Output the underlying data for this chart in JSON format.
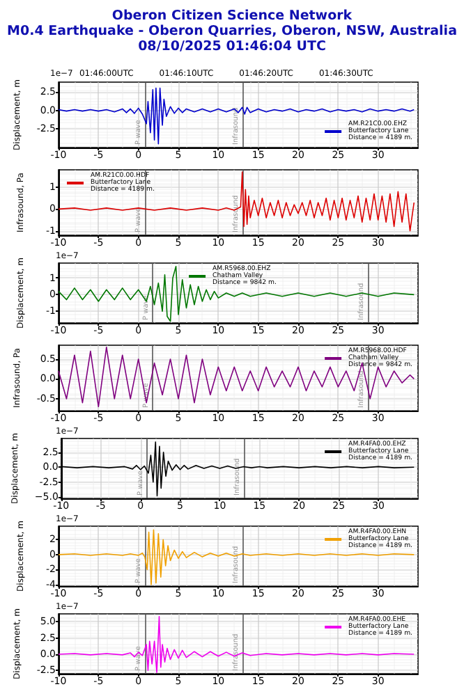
{
  "chart_data": [
    {
      "type": "line",
      "title": "Oberon Citizen Science Network",
      "subtitle": "M0.4 Earthquake - Oberon Quarries, Oberon, NSW, Australia\n08/10/2025 01:46:04 UTC",
      "ylabel": "Displacement, m",
      "annotations": [
        "1e−7",
        {
          "text": "01:46:00UTC",
          "x": -4
        },
        {
          "text": "01:46:10UTC",
          "x": 6
        },
        {
          "text": "01:46:20UTC",
          "x": 16
        },
        {
          "text": "01:46:30UTC",
          "x": 26
        }
      ],
      "xlim": [
        -10,
        35
      ],
      "xticks": [
        -10,
        -5,
        0,
        5,
        10,
        15,
        20,
        25,
        30
      ],
      "ylim": [
        -5,
        3.8
      ],
      "yticks": [
        -2.5,
        {
          "value": 0,
          "label": "0.0"
        },
        2.5
      ],
      "grid": true,
      "legend": "bottom right",
      "ref_lines": [
        {
          "axis": "x",
          "value": 0.8,
          "label": "P wave",
          "color": "#555555"
        },
        {
          "axis": "x",
          "value": 13,
          "label": "Infrasound",
          "color": "#555555"
        }
      ],
      "series": [
        {
          "name": "AM.R21C0.00.EHZ\nButterfactory Lane\nDistance = 4189 m.",
          "color": "#0000cc",
          "x": [
            -10,
            -9,
            -8,
            -7,
            -6,
            -5,
            -4,
            -3,
            -2,
            -1.5,
            -1,
            -0.5,
            0,
            0.5,
            1,
            1.2,
            1.5,
            1.8,
            2,
            2.2,
            2.5,
            2.7,
            3,
            3.2,
            3.5,
            4,
            4.5,
            5,
            5.5,
            6,
            7,
            8,
            9,
            10,
            11,
            12,
            12.5,
            13,
            13.3,
            13.6,
            14,
            15,
            16,
            17,
            18,
            19,
            20,
            21,
            22,
            23,
            24,
            25,
            26,
            27,
            28,
            29,
            30,
            31,
            32,
            33,
            34,
            34.5
          ],
          "values": [
            0.1,
            -0.1,
            0.1,
            -0.1,
            0.1,
            -0.1,
            0.1,
            -0.2,
            0.2,
            -0.3,
            0.2,
            -0.4,
            0.3,
            -0.5,
            -1.8,
            1.2,
            -3.0,
            2.8,
            -4.0,
            3.0,
            -4.5,
            3.0,
            -2.0,
            1.5,
            -0.8,
            0.5,
            -0.4,
            0.3,
            -0.3,
            0.2,
            -0.2,
            0.2,
            -0.2,
            0.2,
            -0.2,
            0.2,
            -0.3,
            0.4,
            -0.5,
            0.4,
            -0.3,
            0.2,
            -0.2,
            0.1,
            -0.1,
            0.2,
            -0.2,
            0.1,
            -0.1,
            0.2,
            -0.2,
            0.1,
            -0.1,
            0.1,
            -0.2,
            0.2,
            -0.1,
            0.1,
            -0.1,
            0.2,
            -0.1,
            0.1
          ]
        }
      ]
    },
    {
      "type": "line",
      "ylabel": "Infrasound, Pa",
      "xlim": [
        -10,
        35
      ],
      "xticks": [
        -10,
        -5,
        0,
        5,
        10,
        15,
        20,
        25,
        30
      ],
      "ylim": [
        -1.2,
        1.8
      ],
      "yticks": [
        -1,
        0,
        1
      ],
      "grid": true,
      "legend": "top left",
      "ref_lines": [
        {
          "axis": "x",
          "value": 0.8,
          "label": "P wave",
          "color": "#555555"
        },
        {
          "axis": "x",
          "value": 13,
          "label": "Infrasound",
          "color": "#555555"
        }
      ],
      "series": [
        {
          "name": "AM.R21C0.00.HDF\nButterfactory Lane\nDistance = 4189 m.",
          "color": "#dd0000",
          "x": [
            -10,
            -8,
            -6,
            -4,
            -2,
            0,
            2,
            4,
            6,
            8,
            10,
            11,
            12,
            12.8,
            13,
            13.2,
            13.4,
            13.6,
            13.8,
            14,
            14.5,
            15,
            15.5,
            16,
            16.5,
            17,
            17.5,
            18,
            18.5,
            19,
            19.5,
            20,
            20.5,
            21,
            21.5,
            22,
            22.5,
            23,
            23.5,
            24,
            24.5,
            25,
            25.5,
            26,
            26.5,
            27,
            27.5,
            28,
            28.5,
            29,
            29.5,
            30,
            30.5,
            31,
            31.5,
            32,
            32.5,
            33,
            33.5,
            34,
            34.5
          ],
          "values": [
            0,
            0.05,
            -0.05,
            0.05,
            -0.05,
            0.05,
            -0.05,
            0.05,
            -0.05,
            0.05,
            -0.05,
            0.05,
            -0.05,
            0.1,
            1.7,
            -0.8,
            0.9,
            -0.7,
            0.6,
            -0.4,
            0.4,
            -0.3,
            0.5,
            -0.4,
            0.3,
            -0.3,
            0.4,
            -0.4,
            0.3,
            -0.3,
            0.2,
            -0.2,
            0.3,
            -0.3,
            0.4,
            -0.4,
            0.3,
            -0.3,
            0.5,
            -0.5,
            0.4,
            -0.4,
            0.5,
            -0.5,
            0.4,
            -0.4,
            0.6,
            -0.6,
            0.5,
            -0.5,
            0.7,
            -0.5,
            0.6,
            -0.6,
            0.7,
            -0.8,
            0.8,
            -0.6,
            0.7,
            -1.0,
            0.3
          ]
        }
      ]
    },
    {
      "type": "line",
      "ylabel": "Displacement, m",
      "annotations": [
        "1e−7"
      ],
      "xlim": [
        -10,
        35
      ],
      "xticks": [
        -10,
        -5,
        0,
        5,
        10,
        15,
        20,
        25,
        30
      ],
      "ylim": [
        -1.7,
        1.9
      ],
      "yticks": [
        -1,
        0,
        1
      ],
      "grid": true,
      "legend": "top",
      "ref_lines": [
        {
          "axis": "x",
          "value": 1.8,
          "label": "P wave",
          "color": "#555555"
        },
        {
          "axis": "x",
          "value": 28.7,
          "label": "Infrasound",
          "color": "#555555"
        }
      ],
      "series": [
        {
          "name": "AM.R5968.00.EHZ\nChatham Valley\nDistance = 9842 m.",
          "color": "#007700",
          "x": [
            -10,
            -9,
            -8,
            -7,
            -6,
            -5,
            -4,
            -3,
            -2,
            -1,
            0,
            1,
            1.5,
            2,
            2.5,
            3,
            3.3,
            3.6,
            4,
            4.3,
            4.7,
            5,
            5.5,
            6,
            6.5,
            7,
            7.5,
            8,
            8.5,
            9,
            9.5,
            10,
            11,
            12,
            13,
            14,
            16,
            18,
            20,
            22,
            24,
            26,
            28,
            30,
            32,
            34.5
          ],
          "values": [
            0.2,
            -0.3,
            0.4,
            -0.3,
            0.3,
            -0.4,
            0.3,
            -0.3,
            0.4,
            -0.3,
            0.3,
            -0.4,
            0.5,
            -0.6,
            0.7,
            -1.0,
            1.2,
            -1.3,
            -1.6,
            1.0,
            1.7,
            -1.2,
            0.9,
            -0.8,
            0.6,
            -0.6,
            0.5,
            -0.4,
            0.3,
            -0.3,
            0.2,
            -0.2,
            0.1,
            -0.1,
            0.1,
            -0.1,
            0.1,
            -0.1,
            0.1,
            -0.1,
            0.1,
            -0.1,
            0.1,
            -0.1,
            0.1,
            0
          ]
        }
      ]
    },
    {
      "type": "line",
      "ylabel": "Infrasound, Pa",
      "xlim": [
        -10,
        35
      ],
      "xticks": [
        -10,
        -5,
        0,
        5,
        10,
        15,
        20,
        25,
        30
      ],
      "ylim": [
        -0.8,
        0.85
      ],
      "yticks": [
        -0.5,
        {
          "value": 0,
          "label": "0.0"
        },
        0.5
      ],
      "grid": true,
      "legend": "top right",
      "ref_lines": [
        {
          "axis": "x",
          "value": 1.8,
          "label": "P wave",
          "color": "#555555"
        },
        {
          "axis": "x",
          "value": 28.7,
          "label": "Infrasound",
          "color": "#555555"
        }
      ],
      "series": [
        {
          "name": "AM.R5968.00.HDF\nChatham Valley\nDistance = 9842 m.",
          "color": "#800080",
          "x": [
            -10,
            -9,
            -8,
            -7,
            -6,
            -5,
            -4,
            -3,
            -2,
            -1,
            0,
            1,
            2,
            3,
            4,
            5,
            6,
            7,
            8,
            9,
            10,
            11,
            12,
            13,
            14,
            15,
            16,
            17,
            18,
            19,
            20,
            21,
            22,
            23,
            24,
            25,
            26,
            27,
            28,
            29,
            30,
            31,
            32,
            33,
            34,
            34.5
          ],
          "values": [
            0.2,
            -0.5,
            0.6,
            -0.6,
            0.7,
            -0.7,
            0.8,
            -0.5,
            0.6,
            -0.5,
            0.5,
            -0.6,
            0.4,
            -0.4,
            0.5,
            -0.5,
            0.6,
            -0.6,
            0.5,
            -0.4,
            0.3,
            -0.3,
            0.3,
            -0.3,
            0.2,
            -0.3,
            0.3,
            -0.2,
            0.2,
            -0.2,
            0.3,
            -0.3,
            0.2,
            -0.2,
            0.3,
            -0.2,
            0.2,
            -0.3,
            0.4,
            -0.5,
            0.3,
            -0.2,
            0.2,
            -0.1,
            0.1,
            0
          ]
        }
      ]
    },
    {
      "type": "line",
      "ylabel": "Displacement, m",
      "annotations": [
        "1e−7"
      ],
      "xlim": [
        -10,
        35
      ],
      "xticks": [
        -10,
        -5,
        0,
        5,
        10,
        15,
        20,
        25,
        30
      ],
      "ylim": [
        -5.2,
        4.8
      ],
      "yticks": [
        {
          "value": -5,
          "label": "−5.0"
        },
        -2.5,
        {
          "value": 0,
          "label": "0.0"
        },
        2.5
      ],
      "grid": true,
      "legend": "top right",
      "ref_lines": [
        {
          "axis": "x",
          "value": 0.8,
          "label": "P wave",
          "color": "#555555"
        },
        {
          "axis": "x",
          "value": 13,
          "label": "Infrasound",
          "color": "#555555"
        }
      ],
      "series": [
        {
          "name": "AM.R4FA0.00.EHZ\nButterfactory Lane\nDistance = 4189 m.",
          "color": "#000000",
          "x": [
            -10,
            -8,
            -6,
            -4,
            -2,
            -1,
            -0.5,
            0,
            0.5,
            1,
            1.3,
            1.6,
            1.9,
            2.1,
            2.4,
            2.6,
            2.9,
            3.2,
            3.5,
            4,
            4.5,
            5,
            5.5,
            6,
            7,
            8,
            9,
            10,
            11,
            12,
            13,
            14,
            15,
            16,
            18,
            20,
            22,
            24,
            26,
            28,
            30,
            32,
            34.5
          ],
          "values": [
            0.1,
            -0.1,
            0.1,
            -0.1,
            0.1,
            -0.3,
            0.3,
            -0.4,
            0.2,
            -1.0,
            2.0,
            -2.5,
            4.2,
            -4.8,
            3.5,
            -3.5,
            2.5,
            -1.5,
            1.0,
            -0.5,
            0.4,
            -0.4,
            0.3,
            -0.3,
            0.3,
            -0.2,
            0.2,
            -0.2,
            0.2,
            -0.2,
            0.1,
            -0.1,
            0.1,
            -0.1,
            0.1,
            -0.1,
            0.1,
            -0.1,
            0.1,
            -0.1,
            0.1,
            -0.1,
            0
          ]
        }
      ]
    },
    {
      "type": "line",
      "ylabel": "Displacement, m",
      "annotations": [
        "1e−7"
      ],
      "xlim": [
        -10,
        35
      ],
      "xticks": [
        -10,
        -5,
        0,
        5,
        10,
        15,
        20,
        25,
        30
      ],
      "ylim": [
        -4.2,
        3.8
      ],
      "yticks": [
        -4,
        -2,
        0,
        2
      ],
      "grid": true,
      "legend": "top right",
      "ref_lines": [
        {
          "axis": "x",
          "value": 0.8,
          "label": "P wave",
          "color": "#555555"
        },
        {
          "axis": "x",
          "value": 13,
          "label": "Infrasound",
          "color": "#555555"
        }
      ],
      "series": [
        {
          "name": "AM.R4FA0.00.EHN\nButterfactory Lane\nDistance = 4189 m.",
          "color": "#f0a000",
          "x": [
            -10,
            -8,
            -6,
            -4,
            -2,
            -1,
            0,
            0.5,
            0.8,
            1.1,
            1.3,
            1.6,
            1.9,
            2.2,
            2.5,
            2.8,
            3.1,
            3.4,
            3.7,
            4,
            4.5,
            5,
            5.5,
            6,
            7,
            8,
            9,
            10,
            11,
            12,
            13,
            14,
            16,
            18,
            20,
            22,
            24,
            26,
            28,
            30,
            32,
            34.5
          ],
          "values": [
            0,
            0.1,
            -0.1,
            0.1,
            -0.1,
            0.1,
            -0.1,
            0.2,
            -0.3,
            -2.0,
            3.0,
            -4.0,
            3.3,
            -3.8,
            2.8,
            -3.0,
            2.0,
            -1.5,
            1.2,
            -0.8,
            0.6,
            -0.5,
            0.4,
            -0.4,
            0.3,
            -0.3,
            0.2,
            -0.2,
            0.2,
            -0.2,
            0.1,
            -0.1,
            0.1,
            -0.1,
            0.1,
            -0.1,
            0.1,
            -0.1,
            0.1,
            -0.1,
            0.1,
            0
          ]
        }
      ]
    },
    {
      "type": "line",
      "ylabel": "Displacement, m",
      "annotations": [
        "1e−7"
      ],
      "xlim": [
        -10,
        35
      ],
      "xticks": [
        -10,
        -5,
        0,
        5,
        10,
        15,
        20,
        25,
        30
      ],
      "ylim": [
        -3,
        6.2
      ],
      "yticks": [
        -2.5,
        {
          "value": 0,
          "label": "0.0"
        },
        2.5,
        {
          "value": 5,
          "label": "5.0"
        }
      ],
      "grid": true,
      "legend": "top right",
      "ref_lines": [
        {
          "axis": "x",
          "value": 0.8,
          "label": "P wave",
          "color": "#555555"
        },
        {
          "axis": "x",
          "value": 13,
          "label": "Infrasound",
          "color": "#555555"
        }
      ],
      "series": [
        {
          "name": "AM.R4FA0.00.EHE\nButterfactory Lane\nDistance = 4189 m.",
          "color": "#ee00ee",
          "x": [
            -10,
            -8,
            -6,
            -4,
            -2,
            -1,
            -0.5,
            0,
            0.5,
            1,
            1.2,
            1.4,
            1.7,
            2,
            2.3,
            2.6,
            2.8,
            3,
            3.3,
            3.6,
            4,
            4.5,
            5,
            5.5,
            6,
            7,
            8,
            9,
            10,
            11,
            12,
            13,
            14,
            16,
            18,
            20,
            22,
            24,
            26,
            28,
            30,
            32,
            34.5
          ],
          "values": [
            0,
            0.1,
            -0.1,
            0.1,
            -0.1,
            0.2,
            -0.4,
            0.3,
            -0.2,
            1.5,
            -2.5,
            2.0,
            -1.5,
            2.0,
            -2.8,
            5.8,
            -2.0,
            1.5,
            -1.2,
            0.9,
            -0.8,
            0.7,
            -0.6,
            0.6,
            -0.5,
            0.4,
            -0.4,
            0.4,
            -0.3,
            0.3,
            -0.3,
            0.2,
            -0.2,
            0.1,
            -0.1,
            0.1,
            -0.1,
            0.1,
            -0.1,
            0.1,
            -0.1,
            0.1,
            0
          ]
        }
      ]
    }
  ]
}
